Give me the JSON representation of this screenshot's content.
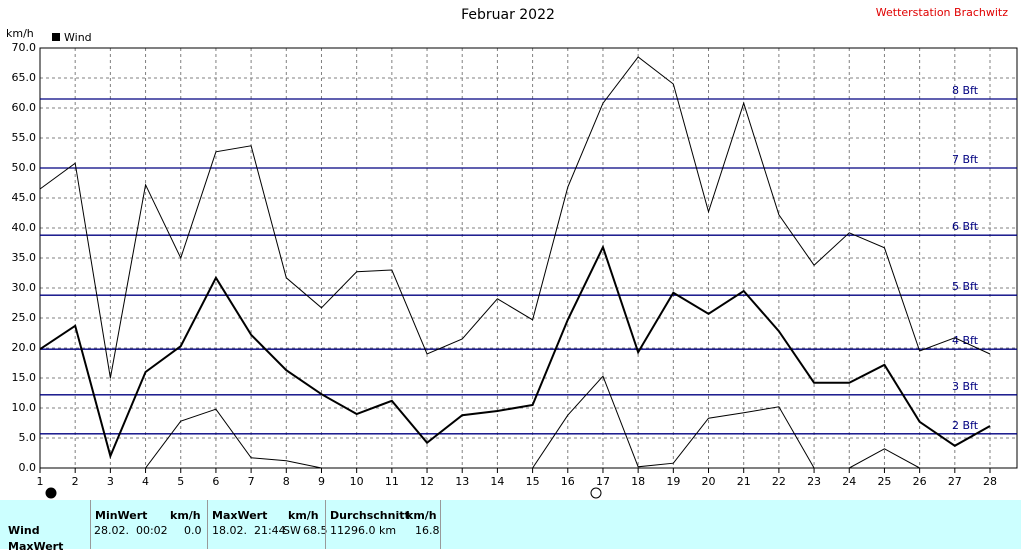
{
  "chart_data": {
    "type": "line",
    "title": "Februar 2022",
    "station": "Wetterstation Brachwitz",
    "y_label": "km/h",
    "categories": [
      "1",
      "2",
      "3",
      "4",
      "5",
      "6",
      "7",
      "8",
      "9",
      "10",
      "11",
      "12",
      "13",
      "14",
      "15",
      "16",
      "17",
      "18",
      "19",
      "20",
      "21",
      "22",
      "23",
      "24",
      "25",
      "26",
      "27",
      "28"
    ],
    "series": [
      {
        "name": "Wind",
        "color": "#000000",
        "values": [
          19.8,
          23.7,
          2.0,
          16.0,
          20.3,
          31.7,
          22.2,
          16.3,
          12.3,
          9.0,
          11.2,
          4.2,
          8.8,
          9.5,
          10.5,
          24.7,
          36.8,
          19.3,
          29.2,
          25.7,
          29.5,
          22.8,
          14.2,
          14.2,
          17.2,
          7.7,
          3.7,
          7.0
        ]
      },
      {
        "color": "#000000",
        "values": [
          46.5,
          50.8,
          15.0,
          47.2,
          35.0,
          52.7,
          53.7,
          31.7,
          26.7,
          32.7,
          33.0,
          19.0,
          21.5,
          28.2,
          24.7,
          46.8,
          60.8,
          68.5,
          64.0,
          42.7,
          60.8,
          42.2,
          33.8,
          39.2,
          36.7,
          19.5,
          21.7,
          19.0
        ]
      },
      {
        "color": "#000000",
        "values": [
          0,
          0,
          0,
          0,
          7.8,
          9.8,
          1.7,
          1.2,
          0,
          0,
          0,
          0,
          0,
          0,
          0,
          8.8,
          15.3,
          0.2,
          0.8,
          8.3,
          9.2,
          10.2,
          0,
          0,
          3.2,
          0,
          0,
          0
        ]
      }
    ],
    "beaufort": [
      {
        "label": "2 Bft",
        "value": 5.7
      },
      {
        "label": "3 Bft",
        "value": 12.2
      },
      {
        "label": "4 Bft",
        "value": 19.8
      },
      {
        "label": "5 Bft",
        "value": 28.8
      },
      {
        "label": "6 Bft",
        "value": 38.8
      },
      {
        "label": "7 Bft",
        "value": 50.0
      },
      {
        "label": "8 Bft",
        "value": 61.5
      }
    ],
    "beaufort_color": "#000080",
    "ylim": [
      0,
      70
    ],
    "yticks": [
      {
        "value": 0,
        "label": "0.0"
      },
      {
        "value": 5,
        "label": "5.0"
      },
      {
        "value": 10,
        "label": "10.0"
      },
      {
        "value": 15,
        "label": "15.0"
      },
      {
        "value": 20,
        "label": "20.0"
      },
      {
        "value": 25,
        "label": "25.0"
      },
      {
        "value": 30,
        "label": "30.0"
      },
      {
        "value": 35,
        "label": "35.0"
      },
      {
        "value": 40,
        "label": "40.0"
      },
      {
        "value": 45,
        "label": "45.0"
      },
      {
        "value": 50,
        "label": "50.0"
      },
      {
        "value": 55,
        "label": "55.0"
      },
      {
        "value": 60,
        "label": "60.0"
      },
      {
        "value": 65,
        "label": "65.0"
      },
      {
        "value": 70,
        "label": "70.0"
      }
    ],
    "grid": true
  },
  "stats": {
    "row_label": "Wind",
    "row_label_2": "MaxWert",
    "min": {
      "head": "MinWert",
      "unit": "km/h",
      "time": "28.02.  00:02",
      "value": "0.0"
    },
    "max": {
      "head": "MaxWert",
      "unit": "km/h",
      "time": "18.02.  21:44",
      "dir": "SW",
      "value": "68.5"
    },
    "avg": {
      "head": "Durchschnitt",
      "unit": "km/h",
      "dist": "11296.0 km",
      "value": "16.8"
    }
  }
}
